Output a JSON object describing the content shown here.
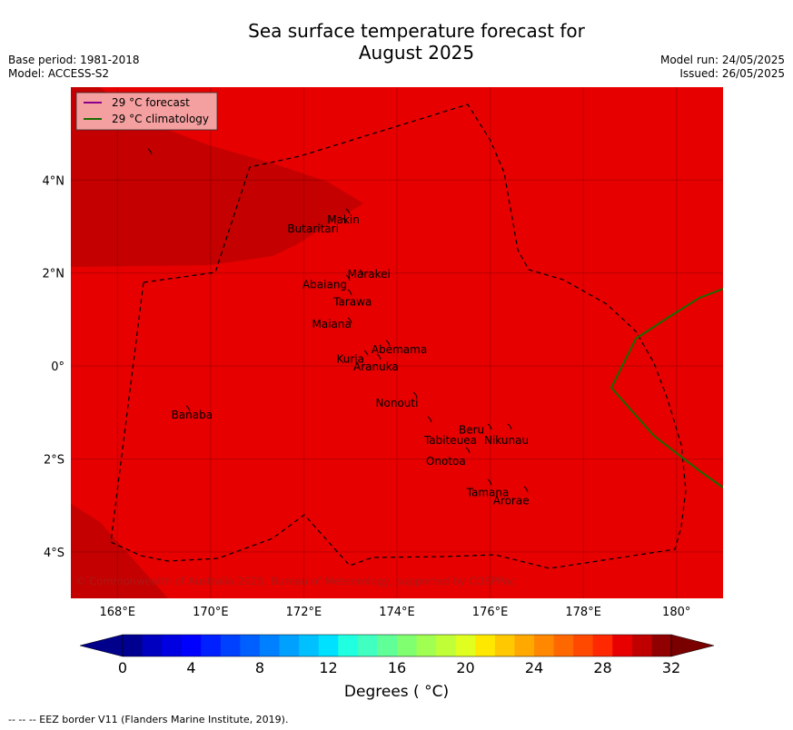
{
  "header": {
    "title_line1": "Sea surface temperature forecast for",
    "title_line2": "August 2025",
    "base_period": "Base period: 1981-2018",
    "model": "Model: ACCESS-S2",
    "model_run": "Model run: 24/05/2025",
    "issued": "Issued: 26/05/2025"
  },
  "map": {
    "x_ticks": [
      "168°E",
      "170°E",
      "172°E",
      "174°E",
      "176°E",
      "178°E",
      "180°"
    ],
    "y_ticks": [
      "4°N",
      "2°N",
      "0°",
      "2°S",
      "4°S"
    ],
    "lon_range": [
      167,
      181
    ],
    "lat_range": [
      -5,
      6
    ],
    "legend": [
      {
        "label": "29 °C  forecast",
        "color": "#8b008b"
      },
      {
        "label": "29 °C  climatology",
        "color": "#1a6b00"
      }
    ],
    "copyright": "© Commonwealth of Australia 2025, Bureau of Meteorology, supported by COSPPac",
    "places": [
      {
        "name": "Makin",
        "lon": 172.85,
        "lat": 3.15
      },
      {
        "name": "Butaritari",
        "lon": 172.2,
        "lat": 2.95
      },
      {
        "name": "Marakei",
        "lon": 173.4,
        "lat": 1.98
      },
      {
        "name": "Abaiang",
        "lon": 172.45,
        "lat": 1.75
      },
      {
        "name": "Tarawa",
        "lon": 173.05,
        "lat": 1.38
      },
      {
        "name": "Maiana",
        "lon": 172.6,
        "lat": 0.9
      },
      {
        "name": "Abemama",
        "lon": 174.05,
        "lat": 0.35
      },
      {
        "name": "Kuria",
        "lon": 173.0,
        "lat": 0.15
      },
      {
        "name": "Aranuka",
        "lon": 173.55,
        "lat": -0.02
      },
      {
        "name": "Banaba",
        "lon": 169.6,
        "lat": -1.05
      },
      {
        "name": "Nonouti",
        "lon": 174.0,
        "lat": -0.8
      },
      {
        "name": "Beru",
        "lon": 175.6,
        "lat": -1.38
      },
      {
        "name": "Tabiteuea",
        "lon": 175.15,
        "lat": -1.6
      },
      {
        "name": "Nikunau",
        "lon": 176.35,
        "lat": -1.6
      },
      {
        "name": "Onotoa",
        "lon": 175.05,
        "lat": -2.05
      },
      {
        "name": "Tamana",
        "lon": 175.95,
        "lat": -2.72
      },
      {
        "name": "Arorae",
        "lon": 176.45,
        "lat": -2.9
      }
    ]
  },
  "colorbar": {
    "tick_labels": [
      "0",
      "4",
      "8",
      "12",
      "16",
      "20",
      "24",
      "28",
      "32"
    ],
    "label": "Degrees ( °C)",
    "colors": [
      "#000090",
      "#0000c0",
      "#0000e0",
      "#0000ff",
      "#0020ff",
      "#0040ff",
      "#0060ff",
      "#0080ff",
      "#00a0ff",
      "#00c0ff",
      "#00e0ff",
      "#20ffe0",
      "#40ffc0",
      "#60ff98",
      "#80ff70",
      "#a0ff50",
      "#c0ff38",
      "#e0ff20",
      "#ffe800",
      "#ffc800",
      "#ffa800",
      "#ff8800",
      "#ff6800",
      "#ff4800",
      "#ff2800",
      "#e80000",
      "#c00000",
      "#900000"
    ],
    "under_color": "#00008b",
    "over_color": "#7a0000"
  },
  "footnote": "-- -- -- EEZ border V11 (Flanders Marine Institute, 2019)."
}
